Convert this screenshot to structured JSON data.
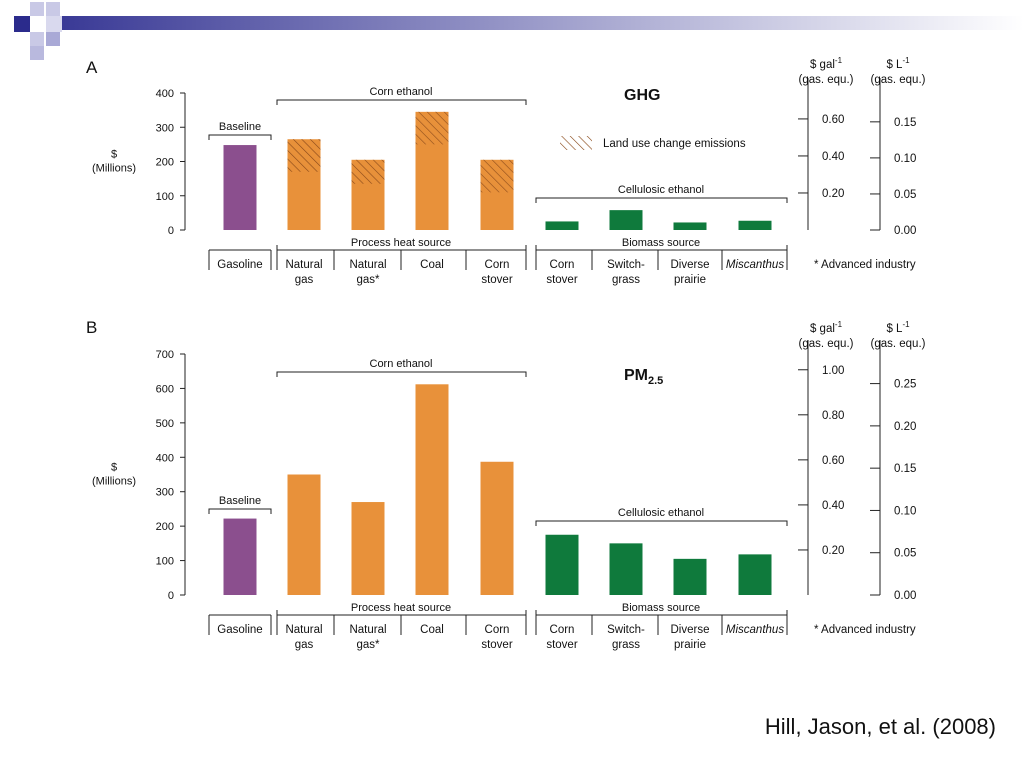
{
  "slide": {
    "citation": "Hill, Jason, et al. (2008)",
    "note": "* Advanced industry"
  },
  "colors": {
    "gasoline": "#8B4F8E",
    "corn": "#E8913A",
    "cellulosic": "#0F7A3C",
    "hatch": "#8A4A1A",
    "accent_blue": "#2B2B8C"
  },
  "chart_data": [
    {
      "panel": "A",
      "type": "bar",
      "title": "GHG",
      "ylabel": [
        "$",
        "(Millions)"
      ],
      "ylim": [
        0,
        400
      ],
      "yticks": [
        "0",
        "100",
        "200",
        "300",
        "400"
      ],
      "categories": [
        {
          "lines": [
            "Gasoline"
          ],
          "italic": false
        },
        {
          "lines": [
            "Natural",
            "gas"
          ],
          "italic": false
        },
        {
          "lines": [
            "Natural",
            "gas*"
          ],
          "italic": false
        },
        {
          "lines": [
            "Coal"
          ],
          "italic": false
        },
        {
          "lines": [
            "Corn",
            "stover"
          ],
          "italic": false
        },
        {
          "lines": [
            "Corn",
            "stover"
          ],
          "italic": false
        },
        {
          "lines": [
            "Switch-",
            "grass"
          ],
          "italic": false
        },
        {
          "lines": [
            "Diverse",
            "prairie"
          ],
          "italic": false
        },
        {
          "lines": [
            "Miscanthus"
          ],
          "italic": true
        }
      ],
      "groups": [
        "gasoline",
        "corn",
        "corn",
        "corn",
        "corn",
        "cellulosic",
        "cellulosic",
        "cellulosic",
        "cellulosic"
      ],
      "values": [
        248,
        265,
        205,
        345,
        205,
        25,
        58,
        22,
        27
      ],
      "land_use_change": [
        0,
        95,
        70,
        95,
        95,
        0,
        0,
        0,
        0
      ],
      "legend": {
        "label": "Land use change emissions",
        "position": "upper-right"
      },
      "brackets": {
        "baseline": "Baseline",
        "corn_ethanol": "Corn ethanol",
        "cellulosic_ethanol": "Cellulosic ethanol",
        "process_heat": "Process heat source",
        "biomass": "Biomass source"
      },
      "right_axes": [
        {
          "label": [
            "$ gal",
            "-1",
            "(gas. equ.)"
          ],
          "ticks": [
            {
              "v": 0.2,
              "t": "0.20"
            },
            {
              "v": 0.4,
              "t": "0.40"
            },
            {
              "v": 0.6,
              "t": "0.60"
            }
          ],
          "max": 0.74
        },
        {
          "label": [
            "$ L",
            "-1",
            "(gas. equ.)"
          ],
          "ticks": [
            {
              "v": 0,
              "t": "0.00"
            },
            {
              "v": 0.05,
              "t": "0.05"
            },
            {
              "v": 0.1,
              "t": "0.10"
            },
            {
              "v": 0.15,
              "t": "0.15"
            }
          ],
          "max": 0.19
        }
      ]
    },
    {
      "panel": "B",
      "type": "bar",
      "title": "PM",
      "title_sub": "2.5",
      "ylabel": [
        "$",
        "(Millions)"
      ],
      "ylim": [
        0,
        700
      ],
      "yticks": [
        "0",
        "100",
        "200",
        "300",
        "400",
        "500",
        "600",
        "700"
      ],
      "categories": [
        {
          "lines": [
            "Gasoline"
          ],
          "italic": false
        },
        {
          "lines": [
            "Natural",
            "gas"
          ],
          "italic": false
        },
        {
          "lines": [
            "Natural",
            "gas*"
          ],
          "italic": false
        },
        {
          "lines": [
            "Coal"
          ],
          "italic": false
        },
        {
          "lines": [
            "Corn",
            "stover"
          ],
          "italic": false
        },
        {
          "lines": [
            "Corn",
            "stover"
          ],
          "italic": false
        },
        {
          "lines": [
            "Switch-",
            "grass"
          ],
          "italic": false
        },
        {
          "lines": [
            "Diverse",
            "prairie"
          ],
          "italic": false
        },
        {
          "lines": [
            "Miscanthus"
          ],
          "italic": true
        }
      ],
      "groups": [
        "gasoline",
        "corn",
        "corn",
        "corn",
        "corn",
        "cellulosic",
        "cellulosic",
        "cellulosic",
        "cellulosic"
      ],
      "values": [
        222,
        350,
        270,
        612,
        387,
        175,
        150,
        105,
        118
      ],
      "brackets": {
        "baseline": "Baseline",
        "corn_ethanol": "Corn ethanol",
        "cellulosic_ethanol": "Cellulosic ethanol",
        "process_heat": "Process heat source",
        "biomass": "Biomass source"
      },
      "right_axes": [
        {
          "label": [
            "$ gal",
            "-1",
            "(gas. equ.)"
          ],
          "ticks": [
            {
              "v": 0.2,
              "t": "0.20"
            },
            {
              "v": 0.4,
              "t": "0.40"
            },
            {
              "v": 0.6,
              "t": "0.60"
            },
            {
              "v": 0.8,
              "t": "0.80"
            },
            {
              "v": 1.0,
              "t": "1.00"
            }
          ],
          "max": 1.07
        },
        {
          "label": [
            "$ L",
            "-1",
            "(gas. equ.)"
          ],
          "ticks": [
            {
              "v": 0,
              "t": "0.00"
            },
            {
              "v": 0.05,
              "t": "0.05"
            },
            {
              "v": 0.1,
              "t": "0.10"
            },
            {
              "v": 0.15,
              "t": "0.15"
            },
            {
              "v": 0.2,
              "t": "0.20"
            },
            {
              "v": 0.25,
              "t": "0.25"
            }
          ],
          "max": 0.285
        }
      ]
    }
  ]
}
